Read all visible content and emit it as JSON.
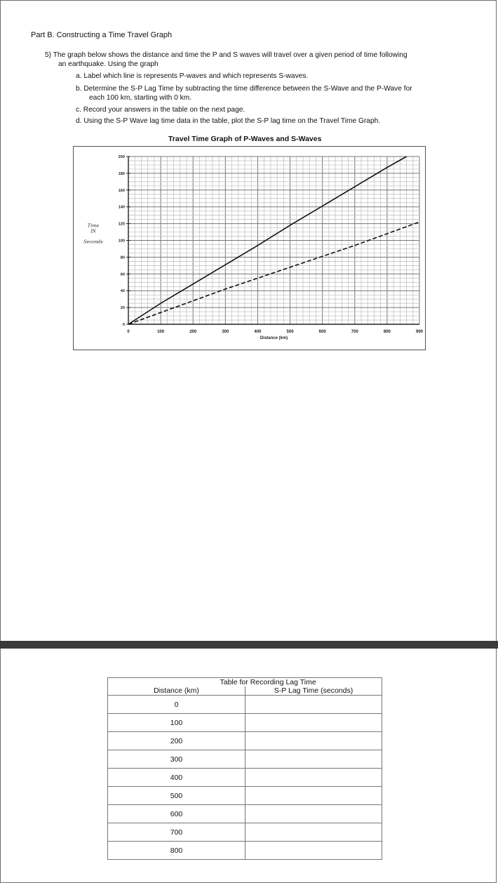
{
  "header": {
    "part_title": "Part B. Constructing a Time Travel Graph"
  },
  "question": {
    "intro_line1": "5)  The graph below shows the distance and time the P and S waves will travel over a given period of time following",
    "intro_line2": "an earthquake. Using the graph",
    "item_a": "a.   Label which line is represents P-waves and which represents S-waves.",
    "item_b_line1": "b.   Determine the S-P Lag Time by subtracting the time difference between the S-Wave and the P-Wave for",
    "item_b_line2": "each 100 km, starting with 0 km.",
    "item_c": "c.   Record your answers in the table on the next page.",
    "item_d": "d.   Using the S-P Wave lag time data in the table, plot the S-P lag time on the Travel Time Graph."
  },
  "chart_data": {
    "type": "line",
    "title": "Travel Time Graph of P-Waves and S-Waves",
    "xlabel": "Distance (km)",
    "ylabel_handwritten": [
      "Time",
      "IN",
      "Seconds"
    ],
    "xlim": [
      0,
      900
    ],
    "ylim": [
      0,
      200
    ],
    "x_ticks": [
      "0",
      "100",
      "200",
      "300",
      "400",
      "500",
      "600",
      "700",
      "800",
      "900"
    ],
    "y_ticks": [
      "0",
      "20",
      "40",
      "60",
      "80",
      "100",
      "120",
      "140",
      "160",
      "180",
      "200"
    ],
    "grid": true,
    "series": [
      {
        "style": "solid",
        "x": [
          0,
          100,
          200,
          300,
          400,
          500,
          600,
          700,
          800,
          860
        ],
        "y": [
          0,
          25,
          48,
          71,
          94,
          118,
          141,
          164,
          187,
          200
        ]
      },
      {
        "style": "dashed",
        "x": [
          0,
          100,
          200,
          300,
          400,
          500,
          600,
          700,
          800,
          900
        ],
        "y": [
          0,
          14,
          28,
          42,
          55,
          68,
          81,
          94,
          108,
          122
        ]
      }
    ]
  },
  "lag_table": {
    "caption": "Table for Recording Lag Time",
    "col_distance": "Distance (km)",
    "col_lag": "S-P Lag Time (seconds)",
    "rows": [
      "0",
      "100",
      "200",
      "300",
      "400",
      "500",
      "600",
      "700",
      "800"
    ]
  }
}
